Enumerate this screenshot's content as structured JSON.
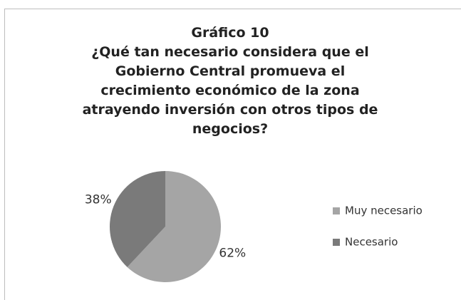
{
  "chart_data": {
    "type": "pie",
    "title": "Gráfico 10",
    "subtitle": "¿Qué tan necesario considera que el Gobierno Central promueva el crecimiento económico de la zona atrayendo inversión con otros tipos de negocios?",
    "categories": [
      "Muy necesario",
      "Necesario"
    ],
    "values": [
      62,
      38
    ],
    "value_labels": [
      "62%",
      "38%"
    ],
    "colors": [
      "#a5a5a5",
      "#7a7a7a"
    ],
    "legend": "right"
  }
}
